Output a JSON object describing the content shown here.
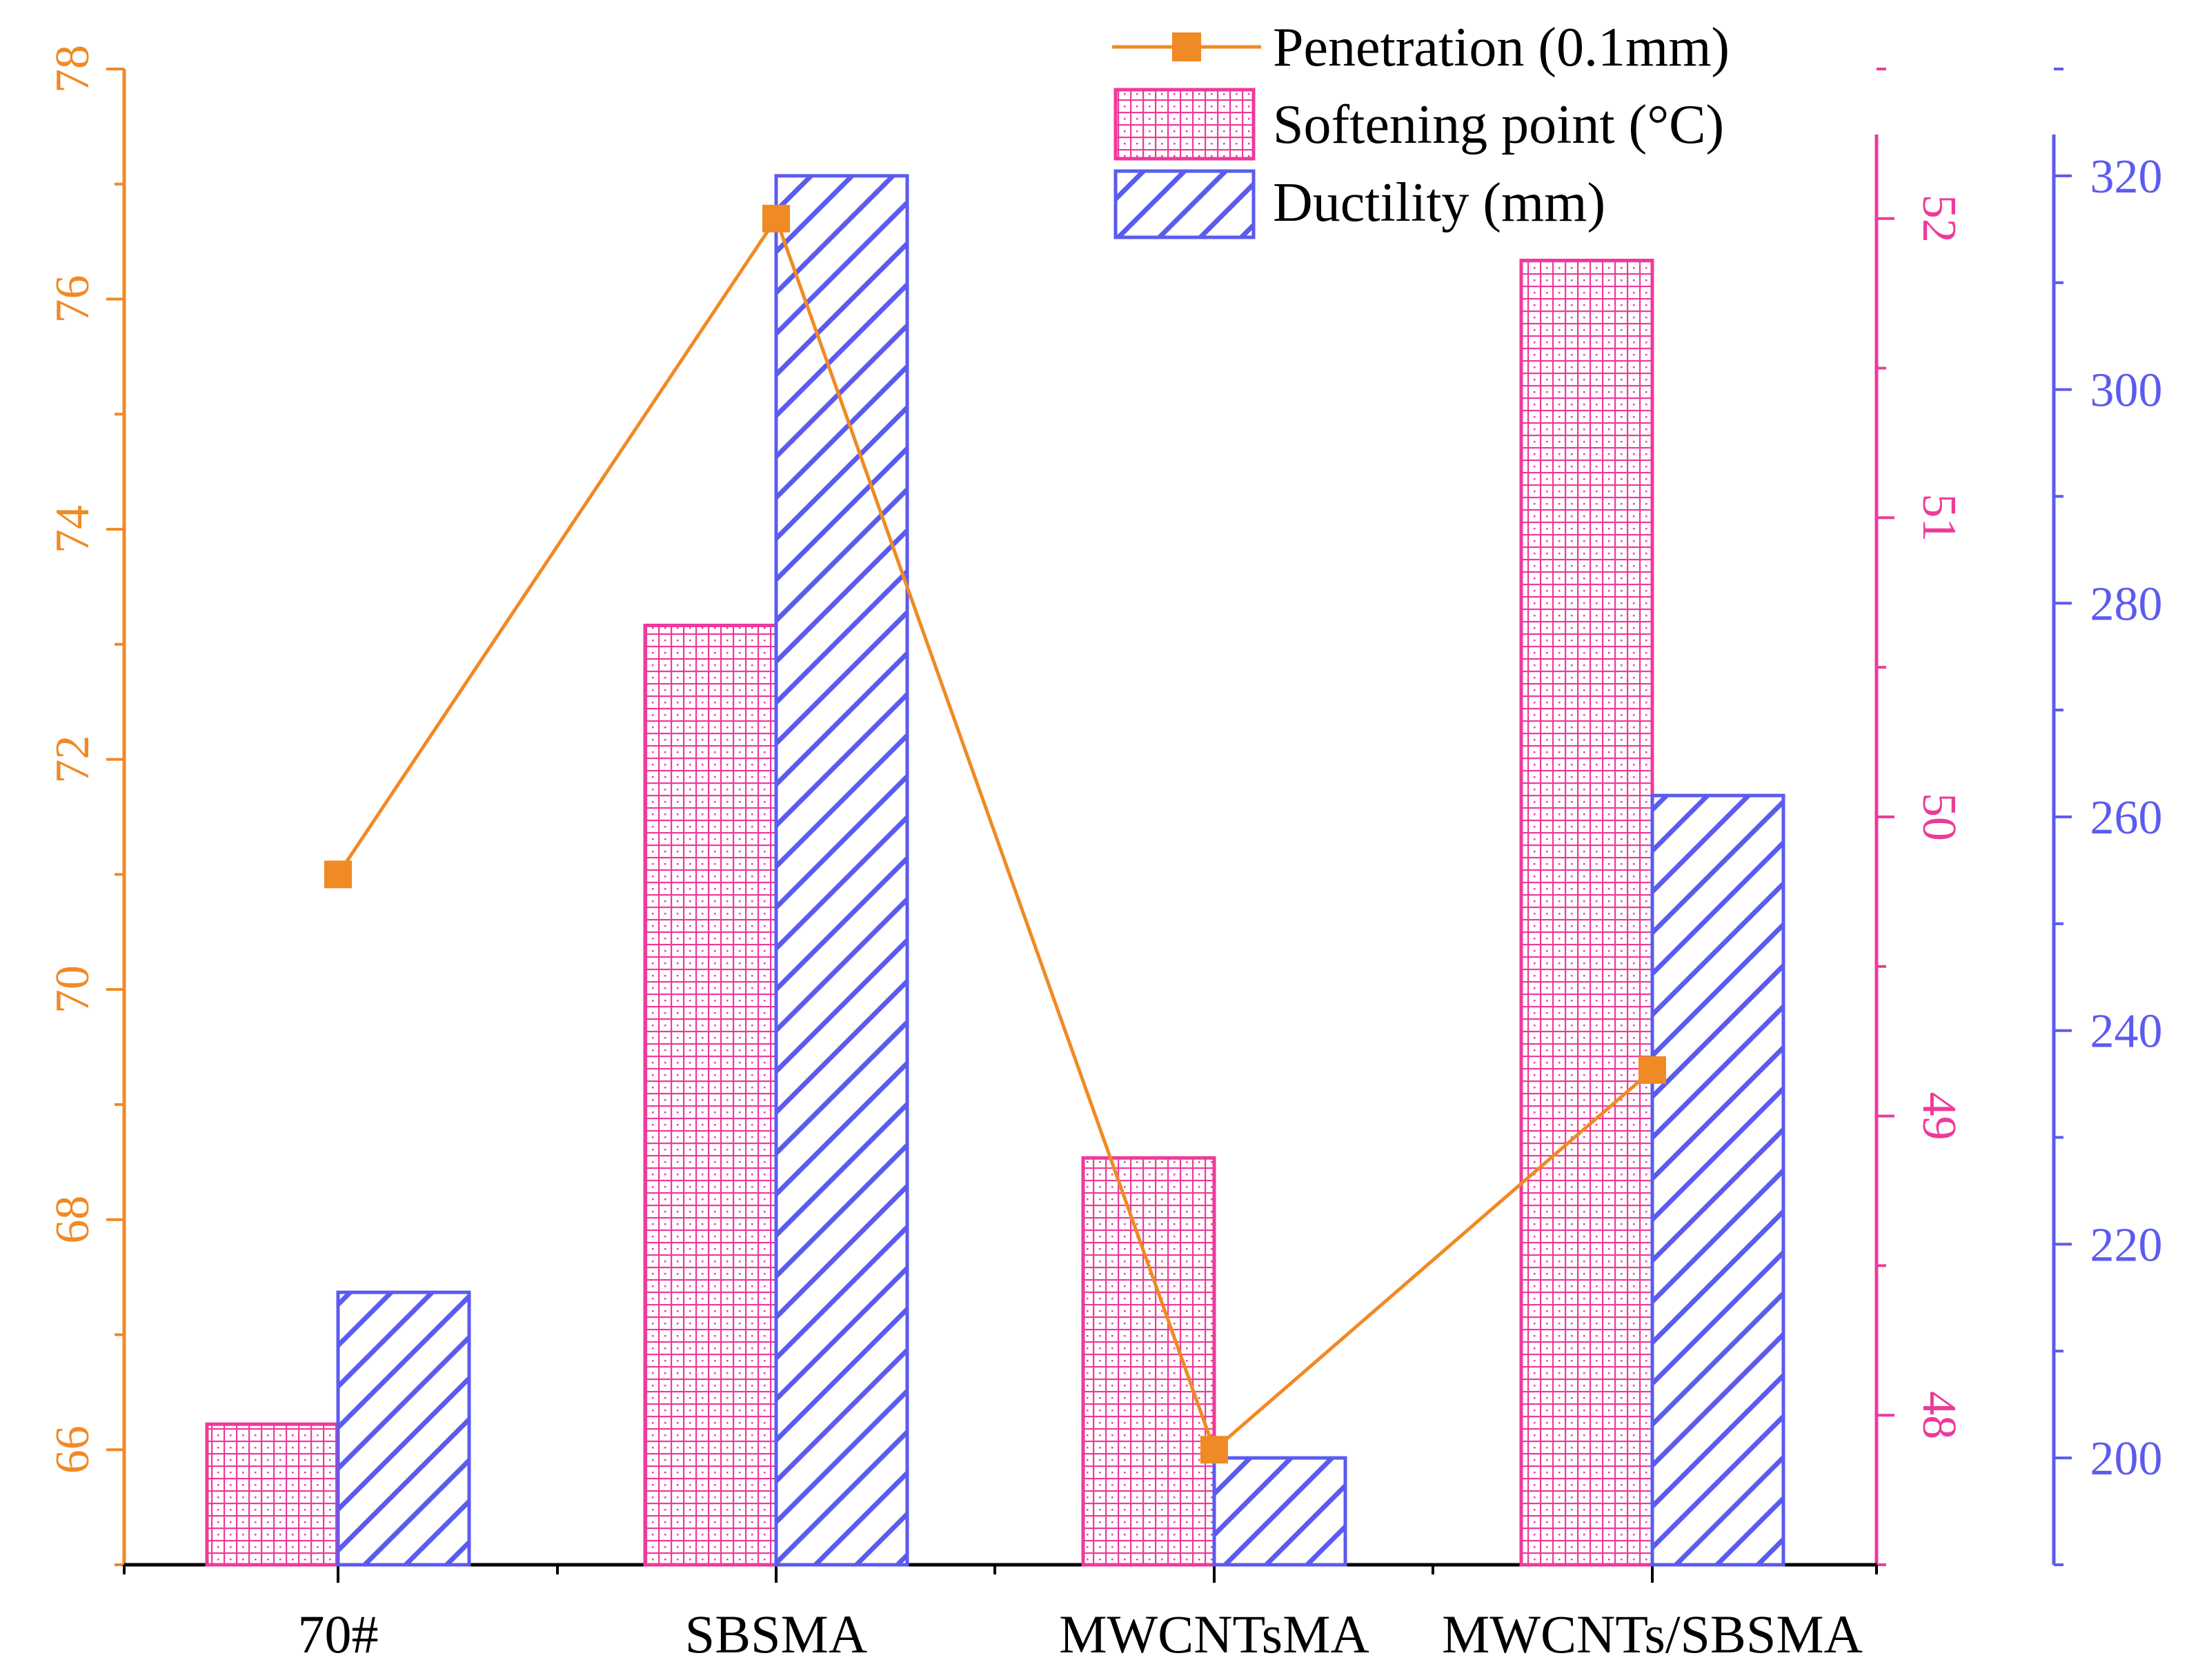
{
  "chart_data": {
    "type": "bar+line",
    "categories": [
      "70#",
      "SBSMA",
      "MWCNTsMA",
      "MWCNTs/SBSMA"
    ],
    "series": [
      {
        "name": "Penetration (0.1mm)",
        "kind": "line",
        "axis": "left",
        "color": "#F08A24",
        "values": [
          71.0,
          76.7,
          66.0,
          69.3
        ]
      },
      {
        "name": "Softening point (°C)",
        "kind": "bar",
        "axis": "right1",
        "color": "#EE3A9A",
        "pattern": "grid",
        "values": [
          47.97,
          50.64,
          48.86,
          51.86
        ]
      },
      {
        "name": "Ductility (mm)",
        "kind": "bar",
        "axis": "right2",
        "color": "#5B5BF0",
        "pattern": "diagonal",
        "values": [
          215.5,
          320.0,
          200.0,
          262.0
        ]
      }
    ],
    "axes": {
      "left": {
        "ylim": [
          65,
          78
        ],
        "ticks": [
          66,
          68,
          70,
          72,
          74,
          76,
          78
        ],
        "color": "#F08A24"
      },
      "right1": {
        "ylim": [
          47.5,
          52.5
        ],
        "ticks": [
          48,
          49,
          50,
          51,
          52
        ],
        "color": "#EE3A9A"
      },
      "right2": {
        "ylim": [
          190,
          330
        ],
        "ticks": [
          200,
          220,
          240,
          260,
          280,
          300,
          320
        ],
        "color": "#5B5BF0"
      }
    },
    "legend": {
      "placement": "top-center",
      "entries": [
        "Penetration (0.1mm)",
        "Softening point (°C)",
        "Ductility (mm)"
      ]
    },
    "title": "",
    "xlabel": "",
    "ylabel": ""
  }
}
